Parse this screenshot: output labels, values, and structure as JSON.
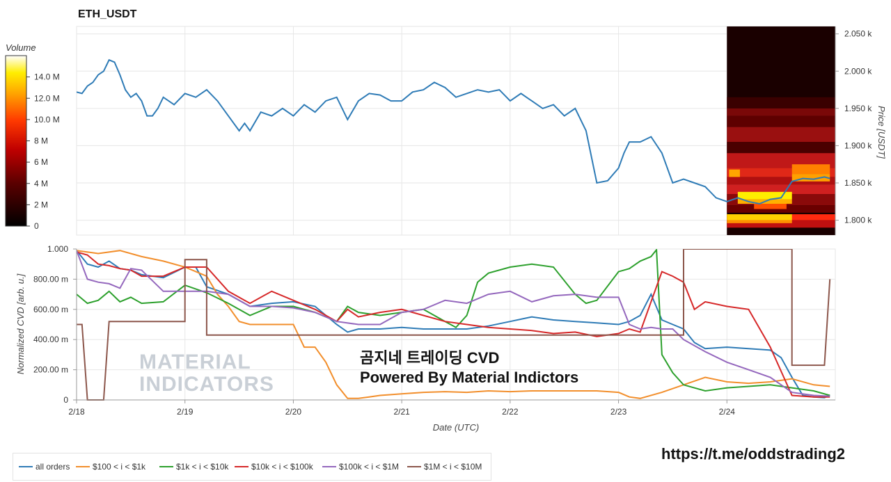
{
  "chart_data": [
    {
      "type": "line",
      "title": "ETH_USDT",
      "ylabel": "Price [USDT]",
      "ylim": [
        1780,
        2060
      ],
      "y_ticks": [
        "1.800 k",
        "1.850 k",
        "1.900 k",
        "1.950 k",
        "2.000 k",
        "2.050 k"
      ],
      "y_tick_values": [
        1800,
        1850,
        1900,
        1950,
        2000,
        2050
      ],
      "x_range": [
        0,
        7
      ],
      "series": [
        {
          "name": "price",
          "color": "#2e7bb6",
          "x": [
            0,
            0.05,
            0.1,
            0.15,
            0.2,
            0.25,
            0.3,
            0.35,
            0.4,
            0.45,
            0.5,
            0.55,
            0.6,
            0.65,
            0.7,
            0.75,
            0.8,
            0.9,
            1.0,
            1.1,
            1.2,
            1.3,
            1.4,
            1.5,
            1.55,
            1.6,
            1.7,
            1.8,
            1.9,
            2.0,
            2.1,
            2.2,
            2.3,
            2.4,
            2.5,
            2.6,
            2.7,
            2.8,
            2.9,
            3.0,
            3.1,
            3.2,
            3.3,
            3.4,
            3.5,
            3.6,
            3.7,
            3.8,
            3.9,
            4.0,
            4.1,
            4.2,
            4.3,
            4.4,
            4.5,
            4.6,
            4.7,
            4.8,
            4.9,
            5.0,
            5.05,
            5.1,
            5.2,
            5.3,
            5.4,
            5.5,
            5.6,
            5.7,
            5.8,
            5.9,
            6.0,
            6.1,
            6.2,
            6.3,
            6.4,
            6.5,
            6.6,
            6.7,
            6.8,
            6.9,
            6.95
          ],
          "y": [
            1972,
            1970,
            1980,
            1985,
            1995,
            2000,
            2015,
            2012,
            1995,
            1975,
            1965,
            1970,
            1960,
            1940,
            1940,
            1950,
            1965,
            1955,
            1970,
            1965,
            1975,
            1960,
            1940,
            1920,
            1930,
            1920,
            1945,
            1940,
            1950,
            1940,
            1955,
            1945,
            1960,
            1965,
            1935,
            1960,
            1970,
            1968,
            1960,
            1960,
            1972,
            1975,
            1985,
            1978,
            1965,
            1970,
            1975,
            1972,
            1975,
            1960,
            1970,
            1960,
            1950,
            1955,
            1940,
            1950,
            1920,
            1850,
            1853,
            1870,
            1890,
            1905,
            1905,
            1912,
            1890,
            1850,
            1855,
            1850,
            1845,
            1830,
            1825,
            1830,
            1825,
            1822,
            1828,
            1830,
            1852,
            1856,
            1855,
            1858,
            1856
          ]
        }
      ],
      "heatmap_note": "Order book liquidity heatmap over last ~1 day",
      "colorbar_label": "Volume",
      "colorbar_ticks": [
        "0",
        "2 M",
        "4 M",
        "6 M",
        "8 M",
        "10.0 M",
        "12.0 M",
        "14.0 M"
      ],
      "colorbar_max": 16
    },
    {
      "type": "line",
      "xlabel": "Date (UTC)",
      "ylabel": "Normalized CVD [arb. u.]",
      "ylim": [
        0,
        1000
      ],
      "y_ticks": [
        "0",
        "200.00 m",
        "400.00 m",
        "600.00 m",
        "800.00 m",
        "1.000"
      ],
      "y_tick_values": [
        0,
        200,
        400,
        600,
        800,
        1000
      ],
      "categories": [
        "2/18",
        "2/19",
        "2/20",
        "2/21",
        "2/22",
        "2/23",
        "2/24"
      ],
      "x_range": [
        0,
        7
      ],
      "series": [
        {
          "name": "all orders",
          "color": "#2e7bb6",
          "x": [
            0,
            0.1,
            0.2,
            0.3,
            0.4,
            0.5,
            0.6,
            0.8,
            1.0,
            1.1,
            1.2,
            1.4,
            1.6,
            1.8,
            2.0,
            2.2,
            2.4,
            2.5,
            2.6,
            2.8,
            3.0,
            3.2,
            3.4,
            3.6,
            3.8,
            4.0,
            4.2,
            4.4,
            4.6,
            4.8,
            5.0,
            5.1,
            5.2,
            5.3,
            5.4,
            5.5,
            5.6,
            5.7,
            5.8,
            6.0,
            6.2,
            6.4,
            6.5,
            6.6,
            6.7,
            6.8,
            6.9,
            6.95
          ],
          "y": [
            990,
            900,
            880,
            920,
            870,
            860,
            830,
            810,
            880,
            880,
            750,
            700,
            620,
            640,
            650,
            620,
            500,
            450,
            470,
            470,
            480,
            470,
            470,
            470,
            490,
            520,
            550,
            530,
            520,
            510,
            500,
            520,
            560,
            700,
            530,
            500,
            470,
            380,
            340,
            350,
            340,
            330,
            280,
            150,
            30,
            20,
            15,
            30
          ]
        },
        {
          "name": "$100 < i < $1k",
          "color": "#f28e2b",
          "x": [
            0,
            0.2,
            0.4,
            0.6,
            0.8,
            1.0,
            1.2,
            1.3,
            1.4,
            1.5,
            1.6,
            1.8,
            2.0,
            2.1,
            2.2,
            2.3,
            2.4,
            2.5,
            2.6,
            2.7,
            2.8,
            3.0,
            3.2,
            3.4,
            3.6,
            3.8,
            4.0,
            4.2,
            4.4,
            4.6,
            4.8,
            5.0,
            5.1,
            5.2,
            5.4,
            5.6,
            5.8,
            6.0,
            6.2,
            6.4,
            6.6,
            6.8,
            6.95
          ],
          "y": [
            990,
            970,
            990,
            950,
            920,
            880,
            820,
            700,
            620,
            520,
            500,
            500,
            500,
            350,
            350,
            250,
            100,
            10,
            10,
            20,
            30,
            40,
            50,
            55,
            50,
            60,
            55,
            60,
            60,
            60,
            60,
            50,
            20,
            10,
            50,
            100,
            150,
            120,
            110,
            120,
            140,
            100,
            90
          ]
        },
        {
          "name": "$1k < i < $10k",
          "color": "#2ca02c",
          "x": [
            0,
            0.1,
            0.2,
            0.3,
            0.4,
            0.5,
            0.6,
            0.8,
            1.0,
            1.2,
            1.4,
            1.6,
            1.8,
            2.0,
            2.2,
            2.4,
            2.5,
            2.6,
            2.8,
            3.0,
            3.2,
            3.4,
            3.5,
            3.6,
            3.7,
            3.8,
            4.0,
            4.2,
            4.4,
            4.6,
            4.7,
            4.8,
            5.0,
            5.1,
            5.2,
            5.3,
            5.35,
            5.4,
            5.5,
            5.6,
            5.8,
            6.0,
            6.2,
            6.4,
            6.6,
            6.8,
            6.95
          ],
          "y": [
            700,
            640,
            660,
            720,
            650,
            680,
            640,
            650,
            760,
            710,
            640,
            560,
            620,
            620,
            580,
            520,
            620,
            580,
            560,
            580,
            600,
            520,
            480,
            560,
            780,
            840,
            880,
            900,
            880,
            700,
            640,
            660,
            850,
            870,
            920,
            950,
            995,
            300,
            180,
            100,
            60,
            80,
            90,
            100,
            80,
            60,
            30
          ]
        },
        {
          "name": "$10k < i < $100k",
          "color": "#d62728",
          "x": [
            0,
            0.1,
            0.2,
            0.3,
            0.4,
            0.5,
            0.6,
            0.8,
            1.0,
            1.2,
            1.4,
            1.6,
            1.8,
            2.0,
            2.2,
            2.4,
            2.5,
            2.6,
            2.8,
            3.0,
            3.2,
            3.4,
            3.6,
            3.8,
            4.0,
            4.2,
            4.4,
            4.6,
            4.8,
            5.0,
            5.1,
            5.2,
            5.3,
            5.4,
            5.5,
            5.6,
            5.7,
            5.8,
            6.0,
            6.2,
            6.4,
            6.6,
            6.8,
            6.95
          ],
          "y": [
            980,
            960,
            900,
            890,
            870,
            860,
            820,
            820,
            880,
            880,
            720,
            640,
            720,
            660,
            600,
            520,
            600,
            550,
            580,
            600,
            560,
            520,
            500,
            480,
            470,
            460,
            440,
            450,
            420,
            440,
            470,
            450,
            650,
            850,
            820,
            780,
            600,
            650,
            620,
            600,
            350,
            30,
            20,
            20
          ]
        },
        {
          "name": "$100k < i < $1M",
          "color": "#9467bd",
          "x": [
            0,
            0.1,
            0.2,
            0.3,
            0.4,
            0.5,
            0.6,
            0.8,
            1.0,
            1.2,
            1.4,
            1.6,
            1.8,
            2.0,
            2.2,
            2.4,
            2.6,
            2.8,
            3.0,
            3.2,
            3.4,
            3.6,
            3.8,
            4.0,
            4.2,
            4.4,
            4.6,
            4.8,
            5.0,
            5.1,
            5.2,
            5.3,
            5.4,
            5.5,
            5.6,
            5.8,
            6.0,
            6.2,
            6.4,
            6.6,
            6.8,
            6.95
          ],
          "y": [
            990,
            800,
            780,
            770,
            740,
            870,
            860,
            720,
            720,
            720,
            700,
            620,
            620,
            610,
            580,
            520,
            500,
            500,
            580,
            600,
            660,
            640,
            700,
            720,
            650,
            690,
            700,
            680,
            680,
            500,
            470,
            480,
            470,
            470,
            400,
            320,
            250,
            200,
            150,
            50,
            30,
            25
          ]
        },
        {
          "name": "$1M < i < $10M",
          "color": "#8c564b",
          "x": [
            0,
            0.05,
            0.1,
            0.25,
            0.3,
            1.0,
            1.0,
            1.2,
            1.2,
            5.6,
            5.6,
            6.6,
            6.6,
            6.9,
            6.95
          ],
          "y": [
            500,
            500,
            0,
            0,
            520,
            520,
            930,
            930,
            430,
            430,
            1000,
            1000,
            230,
            230,
            800
          ]
        }
      ]
    }
  ],
  "legend": [
    {
      "label": "all orders",
      "color": "#2e7bb6"
    },
    {
      "label": "$100 < i < $1k",
      "color": "#f28e2b"
    },
    {
      "label": "$1k < i < $10k",
      "color": "#2ca02c"
    },
    {
      "label": "$10k < i < $100k",
      "color": "#d62728"
    },
    {
      "label": "$100k < i < $1M",
      "color": "#9467bd"
    },
    {
      "label": "$1M < i < $10M",
      "color": "#8c564b"
    }
  ],
  "overlay": {
    "line1": "곰지네 트레이딩 CVD",
    "line2": "Powered By Material Indictors",
    "logo_line1": "MATERIAL",
    "logo_line2": "INDICATORS",
    "link": "https://t.me/oddstrading2"
  }
}
